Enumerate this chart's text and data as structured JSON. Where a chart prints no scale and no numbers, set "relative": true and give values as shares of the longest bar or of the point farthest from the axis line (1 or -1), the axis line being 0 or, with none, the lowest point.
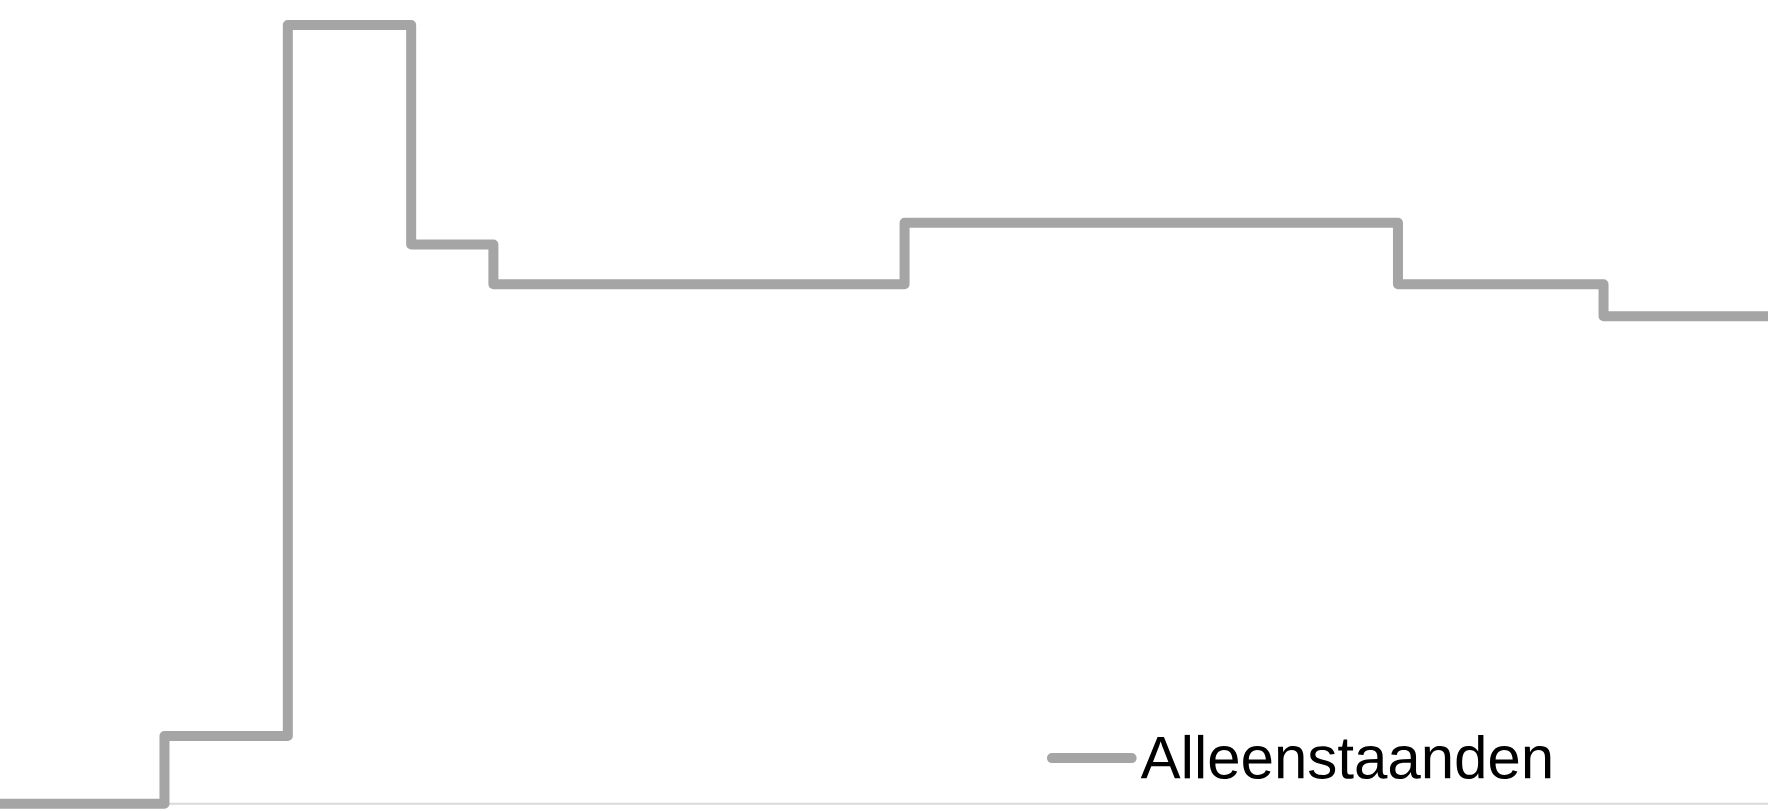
{
  "chart_data": {
    "type": "step",
    "relative": true,
    "tick_labels": false,
    "legend": "bottom right",
    "categories": [
      null,
      null,
      null,
      null,
      null,
      null,
      null,
      null,
      null,
      null,
      null,
      null,
      null,
      null,
      null,
      null,
      null,
      null,
      null,
      null,
      null,
      null,
      null,
      null,
      null,
      null,
      null,
      null,
      null,
      null,
      null,
      null,
      null,
      null,
      null,
      null,
      null,
      null,
      null,
      null,
      null,
      null,
      null,
      null
    ],
    "series": [
      {
        "name": "Alleenstaanden",
        "color": "#a5a5a5",
        "values": [
          0,
          0,
          0,
          0,
          0.087,
          0.087,
          0.087,
          1,
          1,
          1,
          0.718,
          0.718,
          0.667,
          0.667,
          0.667,
          0.667,
          0.667,
          0.667,
          0.667,
          0.667,
          0.667,
          0.667,
          0.746,
          0.746,
          0.746,
          0.746,
          0.746,
          0.746,
          0.746,
          0.746,
          0.746,
          0.746,
          0.746,
          0.746,
          0.667,
          0.667,
          0.667,
          0.667,
          0.667,
          0.626,
          0.626,
          0.626,
          0.626,
          0.626
        ]
      }
    ]
  }
}
